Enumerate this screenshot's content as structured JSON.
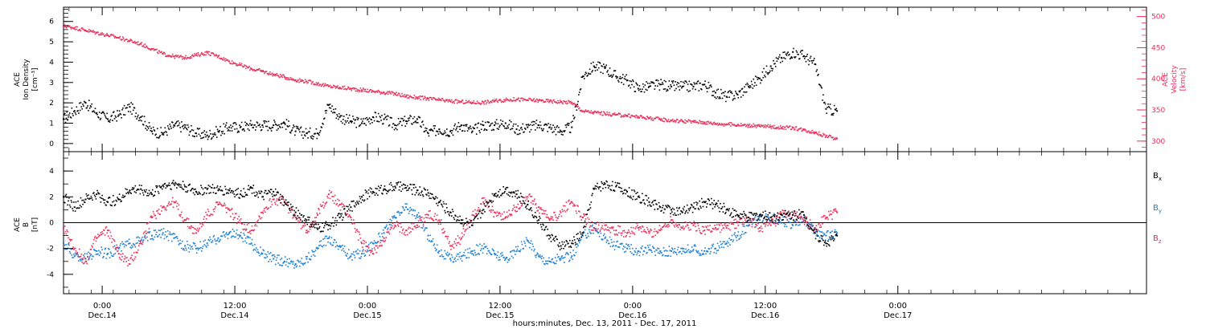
{
  "figure": {
    "xlabel": "hours:minutes, Dec. 13, 2011 - Dec. 17, 2011"
  },
  "colors": {
    "black": "#000000",
    "red": "#e8305a",
    "blue": "#1a7fd4"
  },
  "chart_data": [
    {
      "type": "scatter",
      "panel": "top",
      "x_unit": "hours since Dec.13 0:00",
      "xlim": [
        20.5,
        118.5
      ],
      "xticks": [
        {
          "x": 24,
          "time": "0:00",
          "date": "Dec.14"
        },
        {
          "x": 36,
          "time": "12:00",
          "date": "Dec.14"
        },
        {
          "x": 48,
          "time": "0:00",
          "date": "Dec.15"
        },
        {
          "x": 60,
          "time": "12:00",
          "date": "Dec.15"
        },
        {
          "x": 72,
          "time": "0:00",
          "date": "Dec.16"
        },
        {
          "x": 84,
          "time": "12:00",
          "date": "Dec.16"
        },
        {
          "x": 96,
          "time": "0:00",
          "date": "Dec.17"
        }
      ],
      "y_left": {
        "label_lines": [
          "ACE",
          "Ion Density",
          "[cm⁻³]"
        ],
        "lim": [
          -0.4,
          6.7
        ],
        "ticks": [
          0,
          1,
          2,
          3,
          4,
          5,
          6
        ]
      },
      "y_right": {
        "label_lines": [
          "ACE",
          "Velocity",
          "[km/s]"
        ],
        "lim": [
          283,
          515
        ],
        "ticks": [
          300,
          350,
          400,
          450,
          500
        ]
      },
      "series": [
        {
          "name": "Ion Density",
          "axis": "left",
          "color": "#000000",
          "x": [
            20.5,
            21.5,
            22.5,
            23.5,
            24.5,
            25.5,
            26.5,
            27.5,
            28.5,
            29.5,
            30.5,
            31.5,
            32.5,
            33.5,
            34.5,
            35.5,
            36.5,
            37.5,
            38.5,
            39.5,
            40.5,
            41.5,
            42.5,
            43.5,
            44.5,
            45.5,
            46.5,
            47.5,
            48.5,
            49.5,
            50.5,
            51.5,
            52.5,
            53.5,
            54.5,
            55.5,
            56.5,
            57.5,
            58.5,
            59.5,
            60.5,
            61.5,
            62.5,
            63.5,
            64.5,
            65.5,
            66.5,
            67.5,
            68.5,
            69.5,
            70.5,
            71.5,
            72.5,
            73.5,
            74.5,
            75.5,
            76.5,
            77.5,
            78.5,
            79.5,
            80.5,
            81.5,
            82.5,
            83.5,
            84.5,
            85.5,
            86.5,
            87.5,
            88.5,
            89.5,
            90.5
          ],
          "y": [
            1.2,
            1.6,
            2.0,
            1.5,
            1.2,
            1.4,
            1.8,
            1.3,
            0.6,
            0.5,
            0.9,
            0.8,
            0.5,
            0.4,
            0.6,
            0.8,
            0.8,
            0.9,
            0.9,
            0.9,
            1.0,
            0.6,
            0.5,
            0.5,
            1.9,
            1.3,
            1.1,
            1.0,
            1.3,
            1.2,
            0.9,
            1.1,
            1.2,
            0.5,
            0.7,
            0.6,
            0.9,
            0.6,
            0.9,
            0.9,
            1.0,
            0.7,
            0.8,
            0.9,
            0.8,
            0.6,
            0.8,
            3.3,
            3.8,
            3.7,
            3.3,
            3.1,
            2.7,
            2.8,
            2.9,
            2.8,
            2.8,
            2.8,
            2.9,
            2.5,
            2.3,
            2.4,
            2.8,
            3.2,
            3.8,
            4.2,
            4.5,
            4.3,
            3.9,
            1.7,
            1.6
          ]
        },
        {
          "name": "Velocity",
          "axis": "right",
          "color": "#e8305a",
          "x": [
            20.5,
            21.5,
            22.5,
            23.5,
            24.5,
            25.5,
            26.5,
            27.5,
            28.5,
            29.5,
            30.5,
            31.5,
            32.5,
            33.5,
            34.5,
            35.5,
            36.5,
            37.5,
            38.5,
            39.5,
            40.5,
            41.5,
            42.5,
            43.5,
            44.5,
            45.5,
            46.5,
            47.5,
            48.5,
            49.5,
            50.5,
            51.5,
            52.5,
            53.5,
            54.5,
            55.5,
            56.5,
            57.5,
            58.5,
            59.5,
            60.5,
            61.5,
            62.5,
            63.5,
            64.5,
            65.5,
            66.5,
            67.5,
            68.5,
            69.5,
            70.5,
            71.5,
            72.5,
            73.5,
            74.5,
            75.5,
            76.5,
            77.5,
            78.5,
            79.5,
            80.5,
            81.5,
            82.5,
            83.5,
            84.5,
            85.5,
            86.5,
            87.5,
            88.5,
            89.5,
            90.5
          ],
          "y": [
            485,
            482,
            478,
            474,
            470,
            466,
            461,
            456,
            448,
            440,
            436,
            434,
            438,
            442,
            436,
            428,
            422,
            416,
            412,
            407,
            403,
            398,
            396,
            392,
            388,
            386,
            384,
            382,
            380,
            378,
            376,
            372,
            370,
            368,
            366,
            364,
            363,
            362,
            362,
            364,
            366,
            367,
            366,
            365,
            364,
            363,
            362,
            348,
            346,
            344,
            342,
            341,
            339,
            337,
            335,
            333,
            332,
            331,
            330,
            328,
            327,
            326,
            325,
            324,
            323,
            322,
            321,
            318,
            314,
            308,
            304
          ]
        }
      ]
    },
    {
      "type": "scatter",
      "panel": "bottom",
      "x_unit": "hours since Dec.13 0:00",
      "xlim": [
        20.5,
        118.5
      ],
      "y_left": {
        "label_lines": [
          "ACE",
          "B",
          "[nT]"
        ],
        "lim": [
          -5.5,
          5.5
        ],
        "ticks": [
          -4,
          -2,
          0,
          2,
          4
        ]
      },
      "zero_line": true,
      "series": [
        {
          "name": "Bx",
          "label_main": "B",
          "label_sub": "x",
          "color": "#000000",
          "x": [
            20.5,
            21.5,
            22.5,
            23.5,
            24.5,
            25.5,
            26.5,
            27.5,
            28.5,
            29.5,
            30.5,
            31.5,
            32.5,
            33.5,
            34.5,
            35.5,
            36.5,
            37.5,
            38.5,
            39.5,
            40.5,
            41.5,
            42.5,
            43.5,
            44.5,
            45.5,
            46.5,
            47.5,
            48.5,
            49.5,
            50.5,
            51.5,
            52.5,
            53.5,
            54.5,
            55.5,
            56.5,
            57.5,
            58.5,
            59.5,
            60.5,
            61.5,
            62.5,
            63.5,
            64.5,
            65.5,
            66.5,
            67.5,
            68.5,
            69.5,
            70.5,
            71.5,
            72.5,
            73.5,
            74.5,
            75.5,
            76.5,
            77.5,
            78.5,
            79.5,
            80.5,
            81.5,
            82.5,
            83.5,
            84.5,
            85.5,
            86.5,
            87.5,
            88.5,
            89.5,
            90.5
          ],
          "y": [
            2.0,
            1.2,
            1.8,
            2.2,
            1.6,
            1.8,
            2.5,
            2.6,
            2.2,
            2.9,
            3.0,
            2.8,
            2.4,
            2.6,
            2.5,
            2.5,
            2.2,
            2.7,
            2.0,
            2.4,
            1.6,
            0.8,
            0.2,
            -0.5,
            -0.2,
            0.4,
            1.2,
            2.0,
            2.4,
            2.6,
            2.8,
            2.7,
            2.5,
            2.3,
            1.6,
            0.8,
            0.2,
            -0.2,
            1.0,
            2.2,
            2.6,
            2.2,
            1.4,
            0.2,
            -1.0,
            -1.8,
            -1.6,
            -0.8,
            2.6,
            3.0,
            2.8,
            2.4,
            2.0,
            1.6,
            1.2,
            1.0,
            0.8,
            1.2,
            1.6,
            1.4,
            1.0,
            0.6,
            0.4,
            0.6,
            0.4,
            0.6,
            0.6,
            0.6,
            -0.8,
            -1.6,
            -1.0
          ]
        },
        {
          "name": "By",
          "label_main": "B",
          "label_sub": "y",
          "color": "#1a7fd4",
          "x": [
            20.5,
            21.5,
            22.5,
            23.5,
            24.5,
            25.5,
            26.5,
            27.5,
            28.5,
            29.5,
            30.5,
            31.5,
            32.5,
            33.5,
            34.5,
            35.5,
            36.5,
            37.5,
            38.5,
            39.5,
            40.5,
            41.5,
            42.5,
            43.5,
            44.5,
            45.5,
            46.5,
            47.5,
            48.5,
            49.5,
            50.5,
            51.5,
            52.5,
            53.5,
            54.5,
            55.5,
            56.5,
            57.5,
            58.5,
            59.5,
            60.5,
            61.5,
            62.5,
            63.5,
            64.5,
            65.5,
            66.5,
            67.5,
            68.5,
            69.5,
            70.5,
            71.5,
            72.5,
            73.5,
            74.5,
            75.5,
            76.5,
            77.5,
            78.5,
            79.5,
            80.5,
            81.5,
            82.5,
            83.5,
            84.5,
            85.5,
            86.5,
            87.5,
            88.5,
            89.5,
            90.5
          ],
          "y": [
            -1.6,
            -2.6,
            -2.8,
            -2.2,
            -2.4,
            -2.0,
            -1.6,
            -1.4,
            -1.0,
            -0.8,
            -1.2,
            -1.8,
            -2.0,
            -1.6,
            -1.2,
            -0.8,
            -1.0,
            -1.6,
            -2.4,
            -2.8,
            -3.0,
            -3.2,
            -2.8,
            -2.0,
            -1.2,
            -1.8,
            -2.6,
            -2.4,
            -1.6,
            -0.8,
            0.4,
            1.2,
            0.6,
            -1.0,
            -2.2,
            -2.8,
            -2.6,
            -2.2,
            -2.0,
            -2.4,
            -2.8,
            -2.2,
            -1.4,
            -2.6,
            -3.0,
            -2.8,
            -2.6,
            -1.0,
            -0.4,
            -1.2,
            -1.8,
            -2.0,
            -2.2,
            -2.1,
            -2.2,
            -2.2,
            -2.0,
            -2.1,
            -2.2,
            -2.0,
            -1.6,
            -1.0,
            -0.2,
            0.2,
            0.4,
            0.2,
            -0.2,
            0.4,
            -0.8,
            -1.0,
            -0.8
          ]
        },
        {
          "name": "Bz",
          "label_main": "B",
          "label_sub": "z",
          "color": "#e8305a",
          "x": [
            20.5,
            21.5,
            22.5,
            23.5,
            24.5,
            25.5,
            26.5,
            27.5,
            28.5,
            29.5,
            30.5,
            31.5,
            32.5,
            33.5,
            34.5,
            35.5,
            36.5,
            37.5,
            38.5,
            39.5,
            40.5,
            41.5,
            42.5,
            43.5,
            44.5,
            45.5,
            46.5,
            47.5,
            48.5,
            49.5,
            50.5,
            51.5,
            52.5,
            53.5,
            54.5,
            55.5,
            56.5,
            57.5,
            58.5,
            59.5,
            60.5,
            61.5,
            62.5,
            63.5,
            64.5,
            65.5,
            66.5,
            67.5,
            68.5,
            69.5,
            70.5,
            71.5,
            72.5,
            73.5,
            74.5,
            75.5,
            76.5,
            77.5,
            78.5,
            79.5,
            80.5,
            81.5,
            82.5,
            83.5,
            84.5,
            85.5,
            86.5,
            87.5,
            88.5,
            89.5,
            90.5
          ],
          "y": [
            -0.4,
            -2.0,
            -3.0,
            -1.2,
            -0.6,
            -2.4,
            -3.2,
            -1.6,
            0.4,
            1.2,
            1.6,
            0.2,
            -0.8,
            0.6,
            1.4,
            1.0,
            0.0,
            -0.6,
            0.8,
            1.8,
            1.6,
            0.4,
            -0.6,
            0.6,
            2.2,
            1.4,
            0.4,
            -1.6,
            -2.4,
            -1.2,
            -0.2,
            -0.6,
            -0.2,
            0.6,
            0.2,
            -1.8,
            -1.2,
            0.6,
            1.6,
            0.8,
            0.4,
            1.2,
            2.0,
            1.2,
            0.2,
            0.8,
            1.6,
            0.4,
            -0.4,
            -0.2,
            -0.6,
            -0.8,
            -0.4,
            -0.8,
            -0.6,
            0.2,
            -0.4,
            -0.2,
            -0.6,
            -0.4,
            -0.4,
            0.0,
            0.2,
            -0.4,
            -0.2,
            0.6,
            0.6,
            0.2,
            -0.4,
            0.4,
            0.8
          ]
        }
      ]
    }
  ]
}
